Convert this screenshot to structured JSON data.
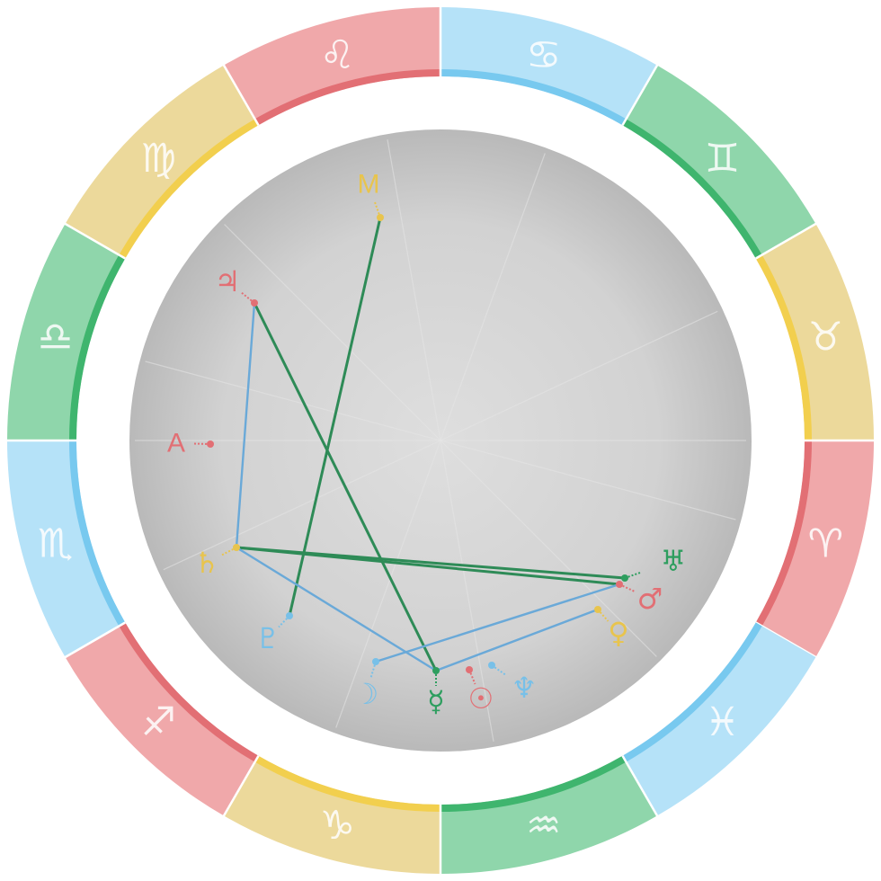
{
  "colors": {
    "fire": "#f0a8aa",
    "fire_edge": "#e26f74",
    "earth": "#ecd99b",
    "earth_edge": "#f2cf4e",
    "air": "#8fd6ab",
    "air_edge": "#3fb56e",
    "water": "#b5e2f8",
    "water_edge": "#78c9ef",
    "line_green": "#2e8b57",
    "line_blue": "#6aa9d8",
    "disc_center": "#dddddd",
    "disc_edge": "#bbbbbb"
  },
  "zodiac": [
    {
      "name": "aries",
      "glyph": "♈",
      "element": "fire"
    },
    {
      "name": "taurus",
      "glyph": "♉",
      "element": "earth"
    },
    {
      "name": "gemini",
      "glyph": "♊",
      "element": "air"
    },
    {
      "name": "cancer",
      "glyph": "♋",
      "element": "water"
    },
    {
      "name": "leo",
      "glyph": "♌",
      "element": "fire"
    },
    {
      "name": "virgo",
      "glyph": "♍",
      "element": "earth"
    },
    {
      "name": "libra",
      "glyph": "♎",
      "element": "air"
    },
    {
      "name": "scorpio",
      "glyph": "♏",
      "element": "water"
    },
    {
      "name": "sagittarius",
      "glyph": "♐",
      "element": "fire"
    },
    {
      "name": "capricorn",
      "glyph": "♑",
      "element": "earth"
    },
    {
      "name": "aquarius",
      "glyph": "♒",
      "element": "air"
    },
    {
      "name": "pisces",
      "glyph": "♓",
      "element": "water"
    }
  ],
  "points": [
    {
      "id": "mc",
      "label": "M",
      "color": "#e8c44d"
    },
    {
      "id": "jupiter",
      "label": "♃",
      "color": "#e26f74"
    },
    {
      "id": "ascendant",
      "label": "A",
      "color": "#e26f74"
    },
    {
      "id": "saturn",
      "label": "♄",
      "color": "#e8c44d"
    },
    {
      "id": "pluto",
      "label": "♇",
      "color": "#78c0e8"
    },
    {
      "id": "moon",
      "label": "☽",
      "color": "#78c0e8"
    },
    {
      "id": "mercury",
      "label": "☿",
      "color": "#2e9e5f"
    },
    {
      "id": "sun",
      "label": "☉",
      "color": "#e26f74"
    },
    {
      "id": "neptune",
      "label": "♆",
      "color": "#78c0e8"
    },
    {
      "id": "venus",
      "label": "♀",
      "color": "#e8c44d"
    },
    {
      "id": "mars",
      "label": "♂",
      "color": "#e26f74"
    },
    {
      "id": "uranus",
      "label": "♅",
      "color": "#2e9e5f"
    }
  ],
  "aspects": [
    {
      "from": "mc",
      "to": "pluto",
      "type": "green"
    },
    {
      "from": "jupiter",
      "to": "mercury",
      "type": "green"
    },
    {
      "from": "saturn",
      "to": "uranus",
      "type": "green"
    },
    {
      "from": "saturn",
      "to": "mars",
      "type": "green"
    },
    {
      "from": "jupiter",
      "to": "saturn",
      "type": "blue"
    },
    {
      "from": "saturn",
      "to": "mercury",
      "type": "blue"
    },
    {
      "from": "moon",
      "to": "mars",
      "type": "blue"
    },
    {
      "from": "mercury",
      "to": "venus",
      "type": "blue"
    }
  ]
}
